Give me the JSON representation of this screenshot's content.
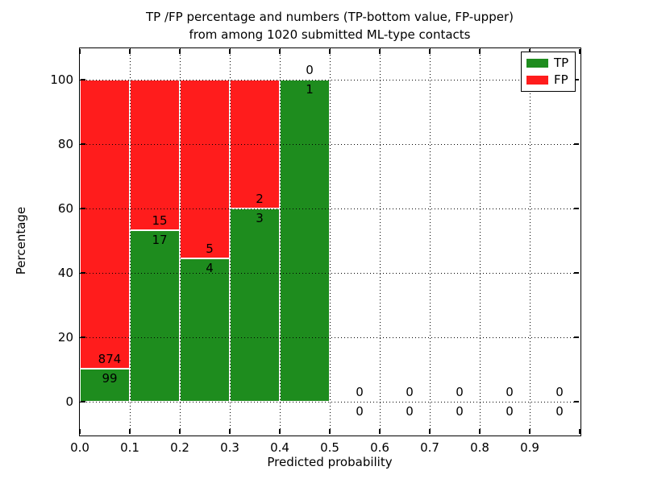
{
  "figure": {
    "title_line1": "TP /FP percentage and numbers (TP-bottom value, FP-upper)",
    "title_line2": "from among 1020 submitted ML-type contacts"
  },
  "chart_data": {
    "type": "bar",
    "stacked": true,
    "title": "TP /FP percentage and numbers (TP-bottom value, FP-upper) from among 1020 submitted ML-type contacts",
    "xlabel": "Predicted probability",
    "ylabel": "Percentage",
    "total_contacts": 1020,
    "xlim": [
      0.0,
      1.0
    ],
    "ylim": [
      -10,
      110
    ],
    "grid": "dotted-black-on-top",
    "legend_position": "upper-right",
    "bin_edges": [
      0.0,
      0.1,
      0.2,
      0.3,
      0.4,
      0.5,
      0.6,
      0.7,
      0.8,
      0.9,
      1.0
    ],
    "x_tick_labels": [
      "0.0",
      "0.1",
      "0.2",
      "0.3",
      "0.4",
      "0.5",
      "0.6",
      "0.7",
      "0.8",
      "0.9"
    ],
    "y_tick_values": [
      0,
      20,
      40,
      60,
      80,
      100
    ],
    "series": [
      {
        "name": "TP",
        "color": "#1e8c1e",
        "counts": [
          99,
          17,
          4,
          3,
          1,
          0,
          0,
          0,
          0,
          0
        ],
        "percentages": [
          10.17,
          53.13,
          44.44,
          60.0,
          100.0,
          0,
          0,
          0,
          0,
          0
        ]
      },
      {
        "name": "FP",
        "color": "#ff1c1c",
        "counts": [
          874,
          15,
          5,
          2,
          0,
          0,
          0,
          0,
          0,
          0
        ],
        "percentages": [
          89.83,
          46.87,
          55.56,
          40.0,
          0,
          0,
          0,
          0,
          0,
          0
        ]
      }
    ],
    "annotation_note": "TP count printed below stack boundary, FP count printed above stack boundary"
  },
  "legend": {
    "items": [
      {
        "label": "TP",
        "color": "#1e8c1e"
      },
      {
        "label": "FP",
        "color": "#ff1c1c"
      }
    ]
  }
}
